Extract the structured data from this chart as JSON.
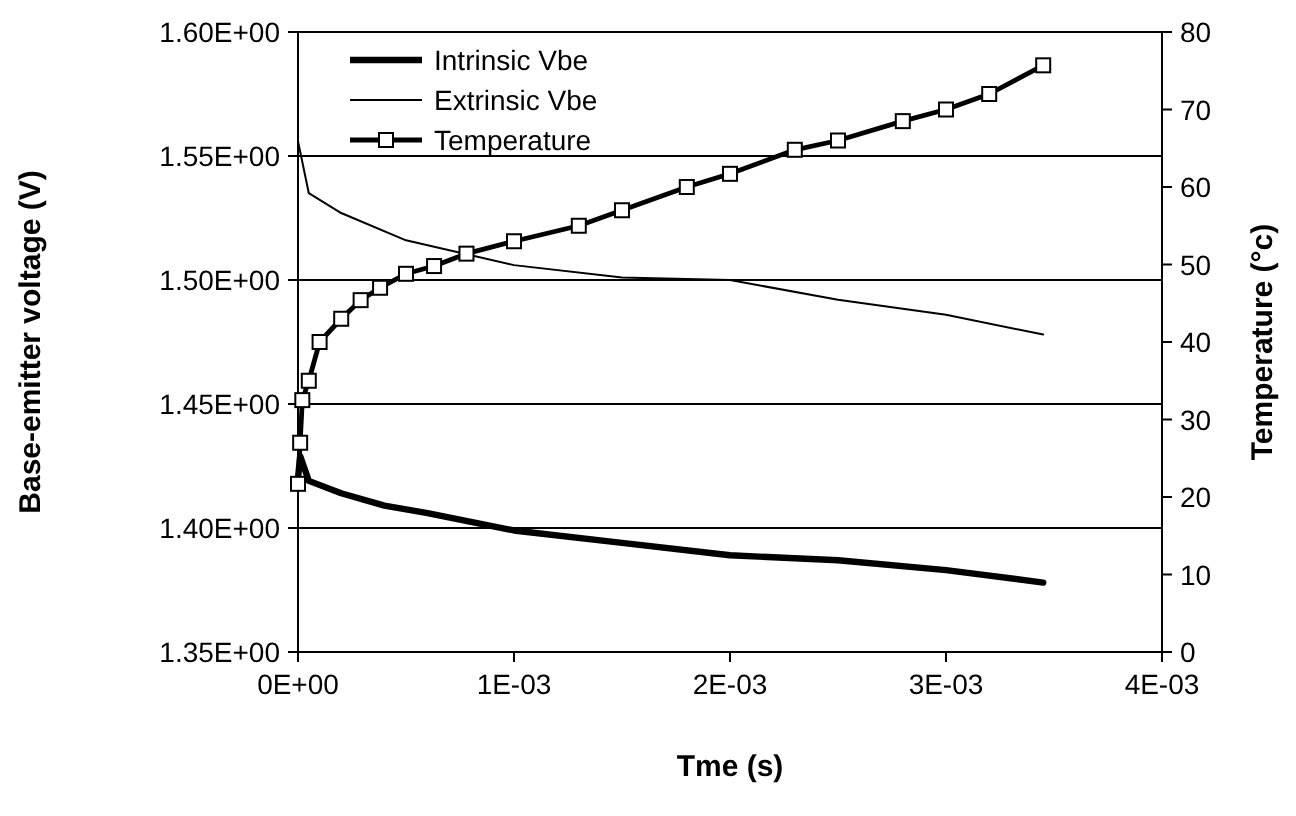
{
  "chart_data": {
    "type": "line",
    "xlabel": "Tme (s)",
    "ylabel": "Base-emitter voltage (V)",
    "y2label": "Temperature (°c)",
    "xlim": [
      0,
      0.004
    ],
    "xticks": [
      {
        "value": 0,
        "label": "0E+00"
      },
      {
        "value": 0.001,
        "label": "1E-03"
      },
      {
        "value": 0.002,
        "label": "2E-03"
      },
      {
        "value": 0.003,
        "label": "3E-03"
      },
      {
        "value": 0.004,
        "label": "4E-03"
      }
    ],
    "ylim": [
      1.35,
      1.6
    ],
    "yticks": [
      {
        "value": 1.35,
        "label": "1.35E+00"
      },
      {
        "value": 1.4,
        "label": "1.40E+00"
      },
      {
        "value": 1.45,
        "label": "1.45E+00"
      },
      {
        "value": 1.5,
        "label": "1.50E+00"
      },
      {
        "value": 1.55,
        "label": "1.55E+00"
      },
      {
        "value": 1.6,
        "label": "1.60E+00"
      }
    ],
    "y2lim": [
      0,
      80
    ],
    "y2ticks": [
      0,
      10,
      20,
      30,
      40,
      50,
      60,
      70,
      80
    ],
    "grid": "y",
    "legend": "top",
    "line_style": "solid",
    "series": [
      {
        "name": "Intrinsic Vbe",
        "color": "#000000",
        "marker": "none",
        "x": [
          0,
          1e-05,
          5e-05,
          0.0002,
          0.0004,
          0.0006,
          0.001,
          0.0015,
          0.002,
          0.0025,
          0.003,
          0.00345
        ],
        "values": [
          1.42,
          1.429,
          1.419,
          1.414,
          1.409,
          1.406,
          1.399,
          1.394,
          1.389,
          1.387,
          1.383,
          1.378
        ]
      },
      {
        "name": "Extrinsic Vbe",
        "color": "#000000",
        "marker": "none",
        "x": [
          0,
          5e-05,
          0.0002,
          0.0005,
          0.001,
          0.0015,
          0.002,
          0.0025,
          0.003,
          0.00345
        ],
        "values": [
          1.556,
          1.535,
          1.527,
          1.516,
          1.506,
          1.501,
          1.5,
          1.492,
          1.486,
          1.478
        ]
      },
      {
        "name": "Temperature",
        "color": "#000000",
        "marker": "square",
        "axis": "y2",
        "x": [
          0,
          1e-05,
          2e-05,
          5e-05,
          0.0001,
          0.0002,
          0.00029,
          0.00038,
          0.0005,
          0.00063,
          0.00078,
          0.001,
          0.0013,
          0.0015,
          0.0018,
          0.002,
          0.0023,
          0.0025,
          0.0028,
          0.003,
          0.0032,
          0.00345
        ],
        "values": [
          21.7,
          27,
          32.5,
          35,
          40,
          43,
          45.4,
          47,
          48.8,
          49.8,
          51.4,
          53,
          55,
          57,
          60,
          61.7,
          64.8,
          66,
          68.5,
          70,
          72,
          75.7
        ]
      }
    ]
  }
}
